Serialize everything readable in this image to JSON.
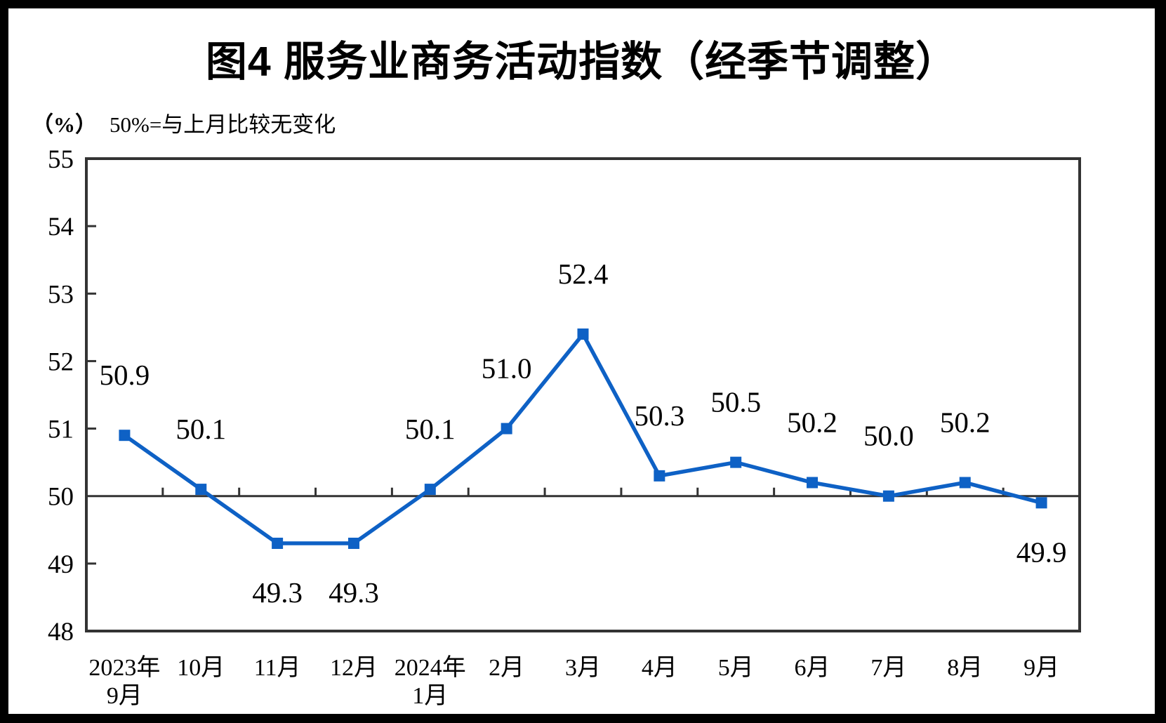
{
  "page": {
    "outer_border_color": "#000000",
    "canvas_background": "#ffffff"
  },
  "title": "图4 服务业商务活动指数（经季节调整）",
  "subtitle": {
    "unit": "（%）",
    "note": "50%=与上月比较无变化"
  },
  "chart_data": {
    "type": "line",
    "title": "图4 服务业商务活动指数（经季节调整）",
    "unit_label": "（%）",
    "annotation": "50%=与上月比较无变化",
    "categories": [
      [
        "2023年",
        "9月"
      ],
      [
        "10月"
      ],
      [
        "11月"
      ],
      [
        "12月"
      ],
      [
        "2024年",
        "1月"
      ],
      [
        "2月"
      ],
      [
        "3月"
      ],
      [
        "4月"
      ],
      [
        "5月"
      ],
      [
        "6月"
      ],
      [
        "7月"
      ],
      [
        "8月"
      ],
      [
        "9月"
      ]
    ],
    "series": [
      {
        "values": [
          50.9,
          50.1,
          49.3,
          49.3,
          50.1,
          51.0,
          52.4,
          50.3,
          50.5,
          50.2,
          50.0,
          50.2,
          49.9
        ]
      }
    ],
    "data_labels": [
      {
        "text": "50.9",
        "position": "above"
      },
      {
        "text": "50.1",
        "position": "above"
      },
      {
        "text": "49.3",
        "position": "below"
      },
      {
        "text": "49.3",
        "position": "below"
      },
      {
        "text": "50.1",
        "position": "above"
      },
      {
        "text": "51.0",
        "position": "above"
      },
      {
        "text": "52.4",
        "position": "above"
      },
      {
        "text": "50.3",
        "position": "above"
      },
      {
        "text": "50.5",
        "position": "above"
      },
      {
        "text": "50.2",
        "position": "above"
      },
      {
        "text": "50.0",
        "position": "above"
      },
      {
        "text": "50.2",
        "position": "above"
      },
      {
        "text": "49.9",
        "position": "below"
      }
    ],
    "ylim": [
      48,
      55
    ],
    "yticks": [
      48,
      49,
      50,
      51,
      52,
      53,
      54,
      55
    ],
    "reference_line_y": 50,
    "grid": false,
    "legend": false,
    "marker": "square",
    "line_color": "#0E61C5",
    "axis_color": "#333333",
    "label_color": "#000000"
  }
}
